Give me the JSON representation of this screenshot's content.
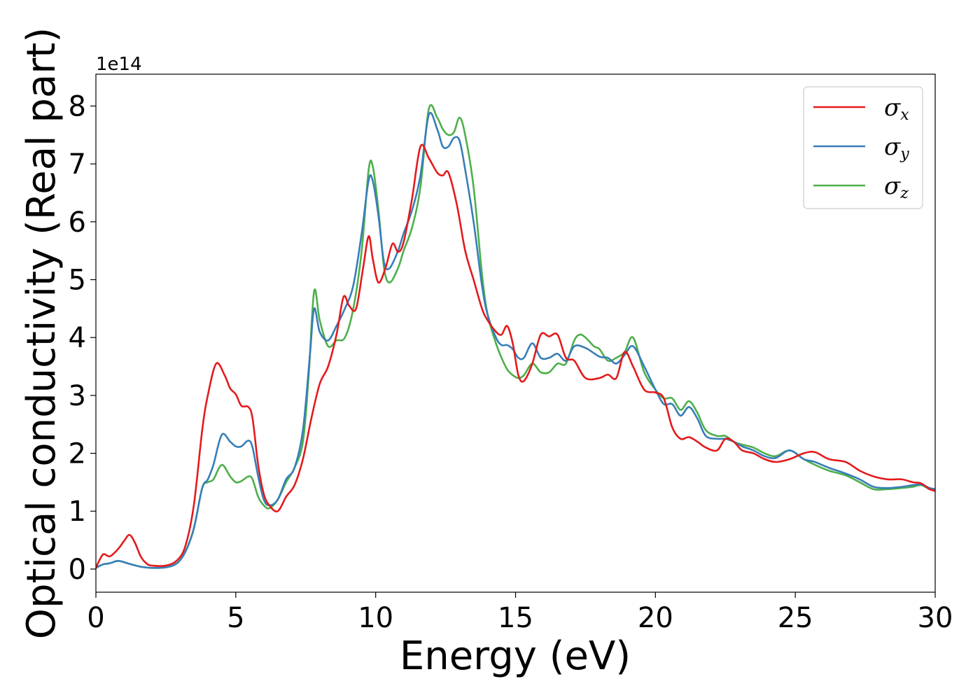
{
  "chart_data": {
    "type": "line",
    "title": "",
    "xlabel": "Energy (eV)",
    "ylabel": "Optical conductivity (Real part)",
    "y_offset_label": "1e14",
    "xlim": [
      0,
      30
    ],
    "ylim": [
      -0.4,
      8.55
    ],
    "x_ticks": [
      0,
      5,
      10,
      15,
      20,
      25,
      30
    ],
    "y_ticks": [
      0,
      1,
      2,
      3,
      4,
      5,
      6,
      7,
      8
    ],
    "grid": false,
    "legend_position": "top-right",
    "series": [
      {
        "name": "σx",
        "legend_symbol": "σ",
        "legend_subscript": "x",
        "color": "#e41a1c",
        "x": [
          0,
          0.25,
          0.5,
          0.8,
          1.0,
          1.2,
          1.4,
          1.6,
          1.8,
          2.0,
          2.5,
          2.9,
          3.2,
          3.5,
          3.8,
          4.0,
          4.3,
          4.6,
          4.8,
          5.0,
          5.2,
          5.45,
          5.6,
          5.8,
          6.0,
          6.2,
          6.5,
          6.8,
          7.1,
          7.4,
          7.7,
          8.0,
          8.3,
          8.6,
          8.85,
          9.05,
          9.3,
          9.55,
          9.75,
          9.9,
          10.1,
          10.35,
          10.6,
          10.8,
          11.0,
          11.3,
          11.6,
          11.9,
          12.2,
          12.4,
          12.6,
          12.9,
          13.2,
          13.5,
          13.8,
          14.0,
          14.3,
          14.5,
          14.7,
          14.9,
          15.1,
          15.3,
          15.6,
          15.9,
          16.2,
          16.5,
          16.8,
          17.1,
          17.5,
          18.0,
          18.3,
          18.6,
          18.9,
          19.2,
          19.6,
          20.0,
          20.3,
          20.6,
          20.9,
          21.2,
          21.5,
          21.8,
          22.2,
          22.5,
          22.8,
          23.1,
          23.5,
          23.9,
          24.3,
          24.8,
          25.3,
          25.7,
          26.2,
          26.8,
          27.3,
          27.8,
          28.3,
          28.8,
          29.2,
          29.5,
          29.8,
          30.0
        ],
        "y": [
          0.02,
          0.25,
          0.22,
          0.35,
          0.48,
          0.59,
          0.45,
          0.22,
          0.1,
          0.06,
          0.06,
          0.15,
          0.4,
          1.1,
          2.4,
          3.0,
          3.55,
          3.35,
          3.12,
          3.02,
          2.82,
          2.8,
          2.6,
          1.8,
          1.3,
          1.1,
          1.0,
          1.25,
          1.45,
          1.9,
          2.6,
          3.2,
          3.5,
          4.05,
          4.7,
          4.55,
          4.5,
          5.2,
          5.75,
          5.35,
          4.95,
          5.2,
          5.62,
          5.48,
          5.65,
          6.4,
          7.3,
          7.1,
          6.85,
          6.8,
          6.85,
          6.3,
          5.5,
          5.0,
          4.5,
          4.3,
          4.1,
          4.05,
          4.2,
          3.9,
          3.35,
          3.25,
          3.55,
          4.05,
          4.02,
          4.05,
          3.65,
          3.6,
          3.3,
          3.3,
          3.36,
          3.3,
          3.75,
          3.5,
          3.1,
          3.05,
          2.95,
          2.45,
          2.25,
          2.28,
          2.2,
          2.1,
          2.05,
          2.25,
          2.2,
          2.05,
          2.0,
          1.9,
          1.85,
          1.9,
          2.0,
          2.02,
          1.9,
          1.85,
          1.7,
          1.6,
          1.55,
          1.55,
          1.5,
          1.48,
          1.38,
          1.35
        ]
      },
      {
        "name": "σy",
        "legend_symbol": "σ",
        "legend_subscript": "y",
        "color": "#377eb8",
        "x": [
          0,
          0.25,
          0.5,
          0.8,
          1.2,
          1.6,
          2.0,
          2.5,
          2.9,
          3.2,
          3.5,
          3.8,
          4.0,
          4.2,
          4.5,
          4.8,
          5.0,
          5.2,
          5.45,
          5.6,
          5.8,
          6.0,
          6.2,
          6.5,
          6.8,
          7.1,
          7.4,
          7.65,
          7.8,
          8.0,
          8.3,
          8.6,
          8.9,
          9.2,
          9.5,
          9.75,
          9.9,
          10.1,
          10.3,
          10.5,
          10.8,
          11.0,
          11.3,
          11.6,
          11.9,
          12.2,
          12.4,
          12.6,
          12.8,
          13.0,
          13.2,
          13.5,
          13.8,
          14.0,
          14.3,
          14.5,
          14.7,
          14.9,
          15.1,
          15.3,
          15.6,
          15.9,
          16.2,
          16.5,
          16.8,
          17.1,
          17.5,
          18.0,
          18.3,
          18.6,
          18.9,
          19.2,
          19.6,
          20.0,
          20.3,
          20.6,
          20.9,
          21.2,
          21.5,
          21.8,
          22.2,
          22.5,
          22.8,
          23.1,
          23.5,
          23.9,
          24.3,
          24.8,
          25.3,
          25.7,
          26.2,
          26.8,
          27.3,
          27.8,
          28.3,
          28.8,
          29.2,
          29.5,
          29.8,
          30.0
        ],
        "y": [
          0.02,
          0.08,
          0.1,
          0.14,
          0.09,
          0.04,
          0.02,
          0.03,
          0.1,
          0.3,
          0.7,
          1.4,
          1.55,
          1.8,
          2.32,
          2.2,
          2.12,
          2.12,
          2.22,
          2.1,
          1.6,
          1.2,
          1.1,
          1.2,
          1.55,
          1.75,
          2.4,
          3.7,
          4.5,
          4.1,
          3.95,
          4.2,
          4.5,
          4.9,
          5.8,
          6.72,
          6.7,
          6.1,
          5.3,
          5.2,
          5.5,
          5.8,
          6.2,
          6.8,
          7.85,
          7.6,
          7.3,
          7.3,
          7.45,
          7.4,
          6.9,
          6.0,
          4.9,
          4.4,
          4.0,
          3.87,
          3.87,
          3.8,
          3.65,
          3.65,
          3.9,
          3.65,
          3.65,
          3.72,
          3.6,
          3.85,
          3.82,
          3.67,
          3.65,
          3.55,
          3.7,
          3.85,
          3.5,
          3.1,
          2.85,
          2.85,
          2.65,
          2.8,
          2.6,
          2.3,
          2.25,
          2.25,
          2.2,
          2.12,
          2.05,
          1.95,
          1.92,
          2.05,
          1.9,
          1.85,
          1.75,
          1.65,
          1.55,
          1.42,
          1.4,
          1.42,
          1.45,
          1.46,
          1.4,
          1.38
        ]
      },
      {
        "name": "σz",
        "legend_symbol": "σ",
        "legend_subscript": "z",
        "color": "#4daf4a",
        "x": [
          0,
          0.25,
          0.5,
          0.8,
          1.2,
          1.6,
          2.0,
          2.5,
          2.9,
          3.2,
          3.5,
          3.8,
          4.0,
          4.2,
          4.5,
          4.8,
          5.0,
          5.2,
          5.45,
          5.6,
          5.8,
          6.0,
          6.2,
          6.5,
          6.8,
          7.1,
          7.4,
          7.6,
          7.8,
          8.0,
          8.3,
          8.6,
          8.9,
          9.2,
          9.5,
          9.75,
          9.9,
          10.1,
          10.3,
          10.5,
          10.8,
          11.0,
          11.3,
          11.6,
          11.9,
          12.2,
          12.4,
          12.6,
          12.8,
          13.0,
          13.2,
          13.5,
          13.8,
          14.0,
          14.3,
          14.5,
          14.7,
          14.9,
          15.1,
          15.3,
          15.6,
          15.9,
          16.2,
          16.5,
          16.8,
          17.1,
          17.3,
          17.5,
          17.8,
          18.0,
          18.3,
          18.6,
          18.9,
          19.2,
          19.6,
          20.0,
          20.3,
          20.6,
          20.9,
          21.2,
          21.5,
          21.8,
          22.2,
          22.5,
          22.8,
          23.1,
          23.5,
          23.9,
          24.3,
          24.8,
          25.3,
          25.7,
          26.2,
          26.8,
          27.3,
          27.8,
          28.3,
          28.8,
          29.2,
          29.5,
          29.8,
          30.0
        ],
        "y": [
          0.02,
          0.08,
          0.1,
          0.14,
          0.09,
          0.04,
          0.02,
          0.03,
          0.1,
          0.3,
          0.7,
          1.4,
          1.5,
          1.55,
          1.8,
          1.6,
          1.5,
          1.52,
          1.6,
          1.55,
          1.25,
          1.1,
          1.05,
          1.2,
          1.5,
          1.75,
          2.2,
          3.3,
          4.8,
          4.3,
          3.85,
          3.95,
          4.0,
          4.5,
          5.5,
          6.9,
          6.95,
          6.2,
          5.2,
          4.95,
          5.2,
          5.5,
          5.9,
          6.6,
          7.95,
          7.8,
          7.6,
          7.5,
          7.55,
          7.8,
          7.5,
          6.6,
          5.1,
          4.4,
          3.9,
          3.65,
          3.45,
          3.35,
          3.3,
          3.35,
          3.55,
          3.4,
          3.4,
          3.55,
          3.55,
          3.95,
          4.05,
          4.0,
          3.85,
          3.8,
          3.6,
          3.65,
          3.75,
          4.0,
          3.4,
          3.1,
          2.95,
          2.95,
          2.75,
          2.9,
          2.7,
          2.4,
          2.3,
          2.3,
          2.2,
          2.15,
          2.1,
          2.0,
          1.95,
          2.05,
          1.9,
          1.8,
          1.7,
          1.62,
          1.5,
          1.38,
          1.38,
          1.4,
          1.42,
          1.45,
          1.38,
          1.38
        ]
      }
    ]
  }
}
